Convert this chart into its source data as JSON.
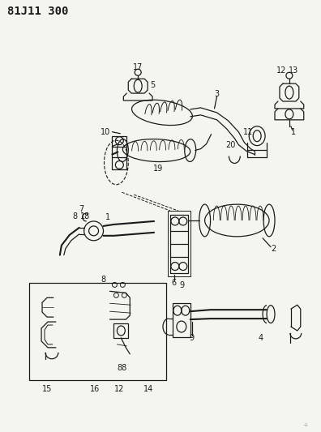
{
  "title": "81J11 300",
  "bg_color": "#f5f5f0",
  "line_color": "#1a1a1a",
  "title_fontsize": 10,
  "label_fontsize": 7,
  "fig_width": 3.96,
  "fig_height": 5.33,
  "dpi": 100
}
